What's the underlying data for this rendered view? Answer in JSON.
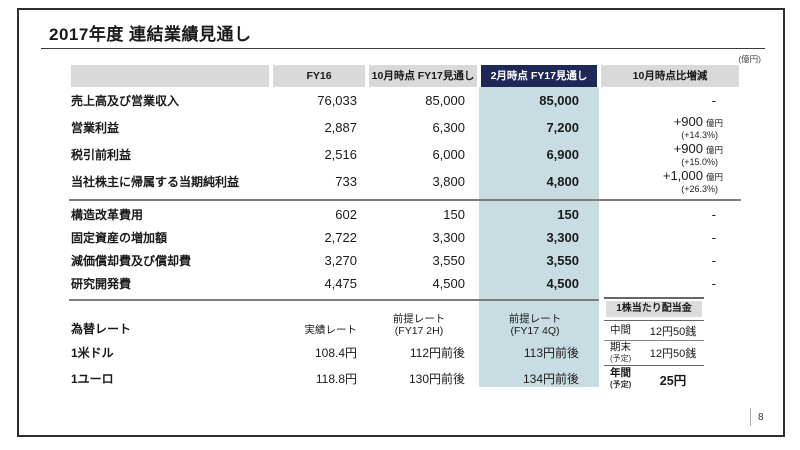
{
  "page": {
    "title": "2017年度 連結業績見通し",
    "unit_note": "(億円)",
    "page_number": "8"
  },
  "table": {
    "headers": {
      "label": "",
      "fy16": "FY16",
      "oct": "10月時点 FY17見通し",
      "feb": "2月時点 FY17見通し",
      "diff": "10月時点比増減"
    },
    "group1": [
      {
        "label": "売上高及び営業収入",
        "fy16": "76,033",
        "oct": "85,000",
        "feb": "85,000",
        "diff_main": "-",
        "diff_unit": "",
        "diff_pct": ""
      },
      {
        "label": "営業利益",
        "fy16": "2,887",
        "oct": "6,300",
        "feb": "7,200",
        "diff_main": "+900",
        "diff_unit": "億円",
        "diff_pct": "(+14.3%)"
      },
      {
        "label": "税引前利益",
        "fy16": "2,516",
        "oct": "6,000",
        "feb": "6,900",
        "diff_main": "+900",
        "diff_unit": "億円",
        "diff_pct": "(+15.0%)"
      },
      {
        "label": "当社株主に帰属する当期純利益",
        "fy16": "733",
        "oct": "3,800",
        "feb": "4,800",
        "diff_main": "+1,000",
        "diff_unit": "億円",
        "diff_pct": "(+26.3%)"
      }
    ],
    "group2": [
      {
        "label": "構造改革費用",
        "fy16": "602",
        "oct": "150",
        "feb": "150",
        "diff_main": "-"
      },
      {
        "label": "固定資産の増加額",
        "fy16": "2,722",
        "oct": "3,300",
        "feb": "3,300",
        "diff_main": "-"
      },
      {
        "label": "減価償却費及び償却費",
        "fy16": "3,270",
        "oct": "3,550",
        "feb": "3,550",
        "diff_main": "-"
      },
      {
        "label": "研究開発費",
        "fy16": "4,475",
        "oct": "4,500",
        "feb": "4,500",
        "diff_main": "-"
      }
    ]
  },
  "fx": {
    "label": "為替レート",
    "col_actual": "実績レート",
    "col_oct_line1": "前提レート",
    "col_oct_line2": "(FY17 2H)",
    "col_feb_line1": "前提レート",
    "col_feb_line2": "(FY17 4Q)",
    "rows": [
      {
        "label": "1米ドル",
        "actual": "108.4円",
        "oct": "112円前後",
        "feb": "113円前後"
      },
      {
        "label": "1ユーロ",
        "actual": "118.8円",
        "oct": "130円前後",
        "feb": "134円前後"
      }
    ]
  },
  "dividend": {
    "title": "1株当たり配当金",
    "interim_label": "中間",
    "interim_sub": "",
    "interim_value": "12円50銭",
    "yearend_label": "期末",
    "yearend_sub": "(予定)",
    "yearend_value": "12円50銭",
    "annual_label": "年間",
    "annual_sub": "(予定)",
    "annual_value": "25円"
  },
  "colors": {
    "highlight_teal": "#c7dde2",
    "header_navy": "#1e2857",
    "header_gray": "#d9d9d9",
    "separator_gray": "#7d7d7d"
  }
}
